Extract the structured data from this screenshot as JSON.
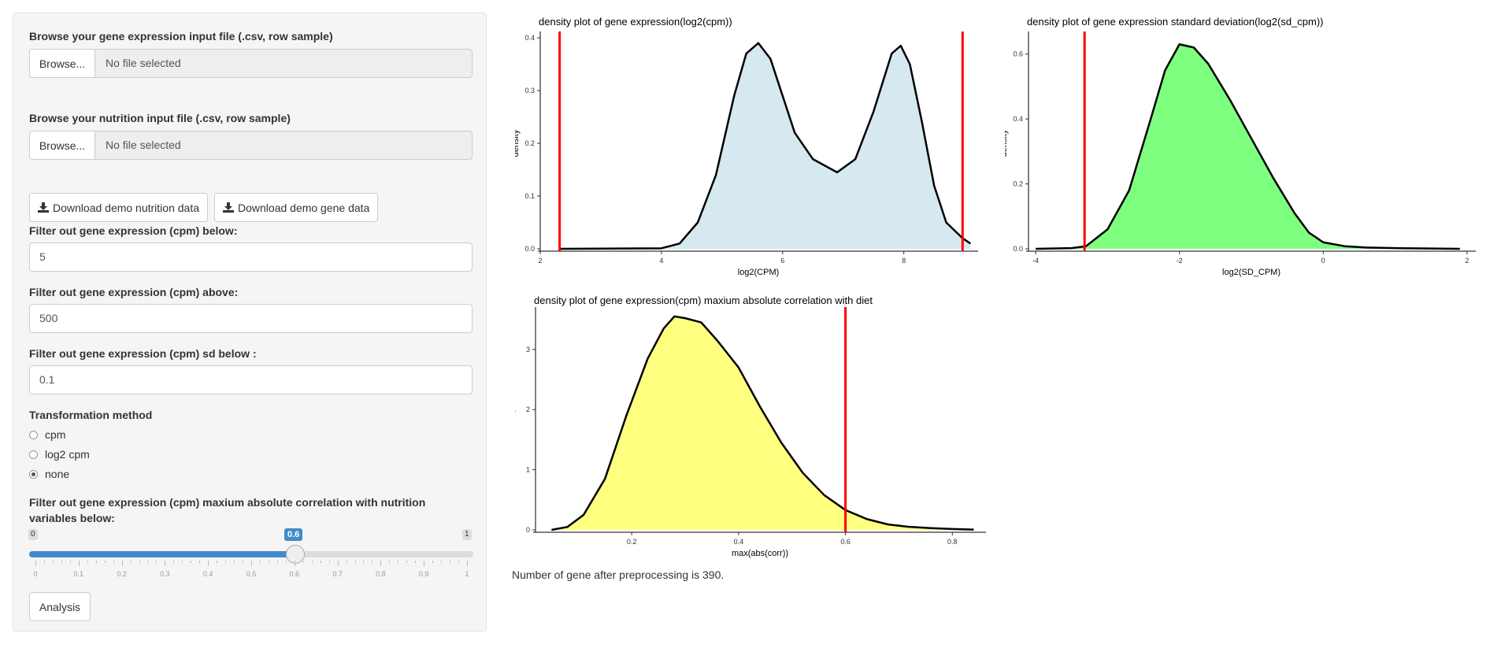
{
  "sidebar": {
    "gene_file_label": "Browse your gene expression input file (.csv, row sample)",
    "gene_file_browse": "Browse...",
    "gene_file_placeholder": "No file selected",
    "nutrition_file_label": "Browse your nutrition input file (.csv, row sample)",
    "nutrition_file_browse": "Browse...",
    "nutrition_file_placeholder": "No file selected",
    "download_nutrition": "Download demo nutrition data",
    "download_gene": "Download demo gene data",
    "filter_below_label": "Filter out gene expression (cpm) below:",
    "filter_below_value": "5",
    "filter_above_label": "Filter out gene expression (cpm) above:",
    "filter_above_value": "500",
    "filter_sd_label": "Filter out gene expression (cpm) sd below :",
    "filter_sd_value": "0.1",
    "transform_label": "Transformation method",
    "transform_options": [
      "cpm",
      "log2 cpm",
      "none"
    ],
    "transform_selected": "none",
    "corr_label_line1": "Filter out gene expression (cpm) maxium absolute correlation with nutrition",
    "corr_label_line2": "variables below:",
    "slider": {
      "min": "0",
      "max": "1",
      "value": "0.6",
      "ticks": [
        "0",
        "0.1",
        "0.2",
        "0.3",
        "0.4",
        "0.5",
        "0.6",
        "0.7",
        "0.8",
        "0.9",
        "1"
      ]
    },
    "analysis_button": "Analysis"
  },
  "status_text": "Number of gene after preprocessing is 390.",
  "chart_data": [
    {
      "type": "area",
      "title": "density plot of gene expression(log2(cpm))",
      "xlabel": "log2(CPM)",
      "ylabel": "density",
      "xlim": [
        2,
        9.2
      ],
      "ylim": [
        0,
        0.4
      ],
      "xticks": [
        2,
        4,
        6,
        8
      ],
      "yticks": [
        0.0,
        0.1,
        0.2,
        0.3,
        0.4
      ],
      "fill": "#d6e8f0",
      "vlines": [
        2.32,
        8.97
      ],
      "vline_color": "#ff0000",
      "x": [
        2.32,
        4.0,
        4.3,
        4.6,
        4.9,
        5.2,
        5.4,
        5.6,
        5.8,
        6.0,
        6.2,
        6.5,
        6.9,
        7.2,
        7.5,
        7.8,
        7.95,
        8.1,
        8.3,
        8.5,
        8.7,
        8.97,
        9.1
      ],
      "y": [
        0.0,
        0.001,
        0.01,
        0.05,
        0.14,
        0.29,
        0.37,
        0.39,
        0.36,
        0.29,
        0.22,
        0.17,
        0.145,
        0.17,
        0.26,
        0.37,
        0.385,
        0.35,
        0.24,
        0.12,
        0.05,
        0.02,
        0.01
      ]
    },
    {
      "type": "area",
      "title": "density plot of gene expression standard deviation(log2(sd_cpm))",
      "xlabel": "log2(SD_CPM)",
      "ylabel": "density",
      "xlim": [
        -4.1,
        2.1
      ],
      "ylim": [
        0,
        0.65
      ],
      "xticks": [
        -4,
        -2,
        0,
        2
      ],
      "yticks": [
        0.0,
        0.2,
        0.4,
        0.6
      ],
      "fill": "#7fff7f",
      "vlines": [
        -3.32
      ],
      "vline_color": "#ff0000",
      "x": [
        -4.0,
        -3.5,
        -3.3,
        -3.0,
        -2.7,
        -2.4,
        -2.2,
        -2.0,
        -1.8,
        -1.6,
        -1.3,
        -1.0,
        -0.7,
        -0.4,
        -0.2,
        0.0,
        0.3,
        0.6,
        1.0,
        1.5,
        1.9
      ],
      "y": [
        0.0,
        0.002,
        0.008,
        0.06,
        0.18,
        0.4,
        0.55,
        0.63,
        0.62,
        0.57,
        0.46,
        0.34,
        0.22,
        0.11,
        0.05,
        0.02,
        0.008,
        0.004,
        0.002,
        0.001,
        0.0
      ]
    },
    {
      "type": "area",
      "title": "density plot of gene expression(cpm) maxium absolute correlation with diet",
      "xlabel": "max(abs(corr))",
      "ylabel": "density",
      "xlim": [
        0.02,
        0.86
      ],
      "ylim": [
        0,
        3.6
      ],
      "xticks": [
        0.2,
        0.4,
        0.6,
        0.8
      ],
      "yticks": [
        0,
        1,
        2,
        3
      ],
      "fill": "#ffff80",
      "vlines": [
        0.6
      ],
      "vline_color": "#ff0000",
      "x": [
        0.05,
        0.08,
        0.11,
        0.15,
        0.19,
        0.23,
        0.26,
        0.28,
        0.3,
        0.33,
        0.36,
        0.4,
        0.44,
        0.48,
        0.52,
        0.56,
        0.6,
        0.64,
        0.68,
        0.72,
        0.76,
        0.8,
        0.84
      ],
      "y": [
        0.0,
        0.05,
        0.25,
        0.85,
        1.9,
        2.85,
        3.35,
        3.55,
        3.52,
        3.45,
        3.15,
        2.7,
        2.05,
        1.45,
        0.95,
        0.58,
        0.33,
        0.18,
        0.09,
        0.05,
        0.03,
        0.015,
        0.005
      ]
    }
  ]
}
